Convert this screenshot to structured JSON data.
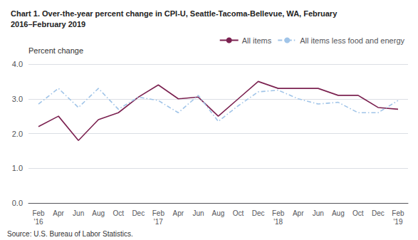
{
  "chart_data": {
    "type": "line",
    "title": "Chart 1. Over-the-year percent change in CPI-U, Seattle-Tacoma-Bellevue, WA, February\n2016–February 2019",
    "ylabel": "Percent change",
    "annotations": [
      "Source: U.S. Bureau of Labor Statistics."
    ],
    "categories": [
      "Feb\n'16",
      "Apr",
      "Jun",
      "Aug",
      "Oct",
      "Dec",
      "Feb\n'17",
      "Apr",
      "Jun",
      "Aug",
      "Oct",
      "Dec",
      "Feb\n'18",
      "Apr",
      "Jun",
      "Aug",
      "Oct",
      "Dec",
      "Feb\n'19"
    ],
    "series": [
      {
        "name": "All items",
        "color": "#7b2150",
        "line_style": "solid",
        "values": [
          2.2,
          2.5,
          1.8,
          2.4,
          2.6,
          3.05,
          3.4,
          3.0,
          3.05,
          2.5,
          3.0,
          3.5,
          3.3,
          3.3,
          3.3,
          3.1,
          3.1,
          2.75,
          2.7
        ]
      },
      {
        "name": "All items less food and energy",
        "color": "#a0c4e8",
        "line_style": "dashdot",
        "values": [
          2.85,
          3.3,
          2.75,
          3.3,
          2.7,
          3.05,
          2.95,
          2.6,
          3.1,
          2.35,
          2.8,
          3.2,
          3.25,
          3.0,
          2.85,
          2.9,
          2.6,
          2.6,
          2.95
        ]
      }
    ],
    "ylim": [
      0.0,
      4.0
    ],
    "yticks": [
      {
        "value": 0,
        "label": "0.0"
      },
      {
        "value": 1,
        "label": "1.0"
      },
      {
        "value": 2,
        "label": "2.0"
      },
      {
        "value": 3,
        "label": "3.0"
      },
      {
        "value": 4,
        "label": "4.0"
      }
    ],
    "grid": true,
    "legend": "upper right"
  }
}
